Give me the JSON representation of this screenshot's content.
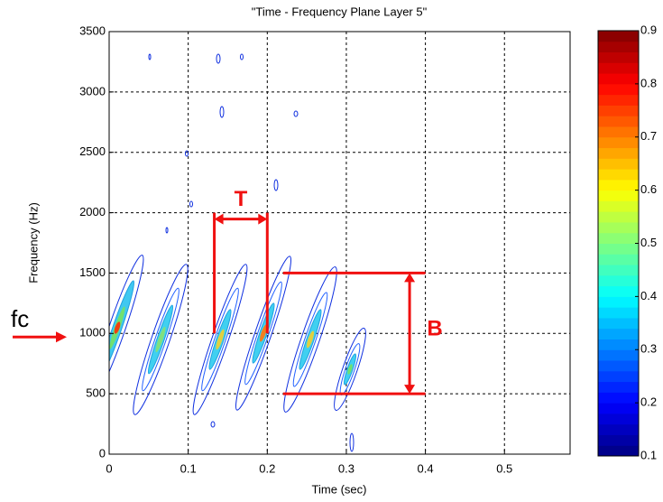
{
  "chart_data": {
    "type": "contour",
    "title": "\"Time - Frequency Plane Layer 5\"",
    "x_label": "Time (sec)",
    "y_label": "Frequency (Hz)",
    "xlim": [
      0,
      0.583
    ],
    "ylim": [
      0,
      3500
    ],
    "xticks": [
      0,
      0.1,
      0.2,
      0.3,
      0.4,
      0.5
    ],
    "yticks": [
      0,
      500,
      1000,
      1500,
      2000,
      2500,
      3000,
      3500
    ],
    "grid": true,
    "colormap": "jet",
    "clim": [
      0.1,
      0.9
    ],
    "cticks": [
      0.1,
      0.2,
      0.3,
      0.4,
      0.5,
      0.6,
      0.7,
      0.8,
      0.9
    ],
    "annotations": [
      {
        "text": "T",
        "x": [
          0.133,
          0.2
        ],
        "y": 2000,
        "guides_y": [
          1000,
          2000
        ]
      },
      {
        "text": "B",
        "x": 0.38,
        "y": [
          500,
          1500
        ],
        "guides_x": [
          0.22,
          0.4
        ]
      },
      {
        "text": "fc",
        "y": 1000
      }
    ]
  }
}
